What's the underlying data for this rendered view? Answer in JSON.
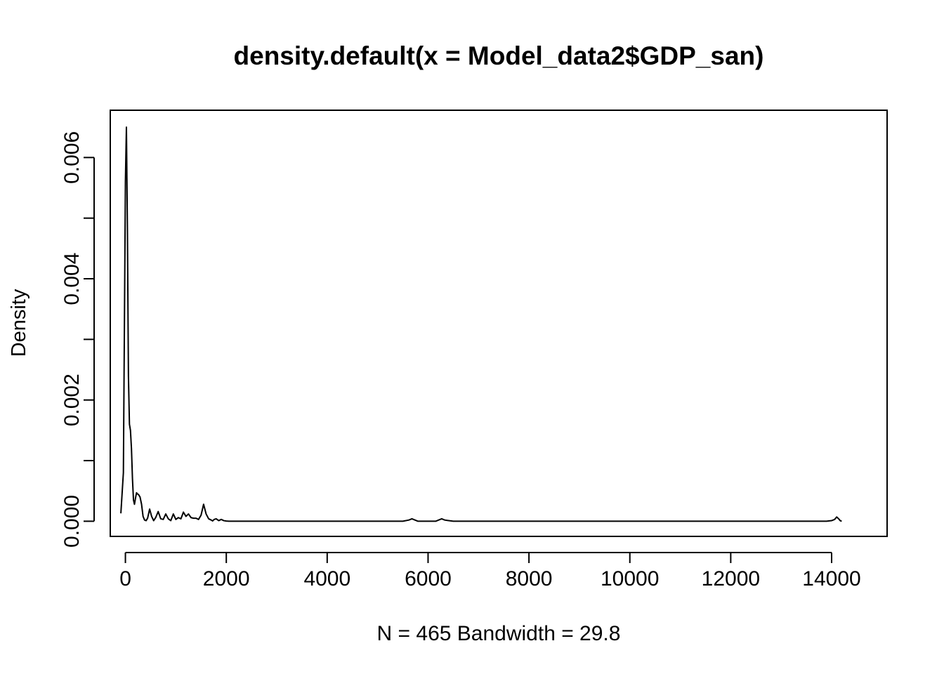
{
  "chart_data": {
    "type": "line",
    "title": "density.default(x = Model_data2$GDP_san)",
    "xlabel": "N = 465   Bandwidth = 29.8",
    "ylabel": "Density",
    "xlim": [
      -300,
      15100
    ],
    "ylim": [
      -0.00025,
      0.00678
    ],
    "x_ticks": [
      0,
      2000,
      4000,
      6000,
      8000,
      10000,
      12000,
      14000
    ],
    "x_tick_labels": [
      "0",
      "2000",
      "4000",
      "6000",
      "8000",
      "10000",
      "12000",
      "14000"
    ],
    "y_ticks": [
      0,
      0.001,
      0.002,
      0.003,
      0.004,
      0.005,
      0.006
    ],
    "y_tick_labels": [
      "0.000",
      "",
      "0.002",
      "",
      "0.004",
      "",
      "0.006"
    ],
    "grid": false,
    "series": [
      {
        "color": "#000000",
        "x": [
          -90,
          -40,
          0,
          20,
          40,
          60,
          80,
          100,
          120,
          140,
          160,
          180,
          200,
          220,
          240,
          260,
          290,
          320,
          350,
          380,
          410,
          440,
          480,
          520,
          560,
          600,
          650,
          700,
          750,
          800,
          850,
          900,
          950,
          1000,
          1050,
          1100,
          1150,
          1200,
          1250,
          1300,
          1350,
          1400,
          1450,
          1500,
          1550,
          1600,
          1650,
          1700,
          1730,
          1760,
          1800,
          1850,
          1900,
          1950,
          2000,
          2050,
          2100,
          2150,
          2200,
          2400,
          2700,
          3000,
          4000,
          5000,
          5500,
          5620,
          5680,
          5740,
          5800,
          6150,
          6210,
          6270,
          6330,
          6500,
          8000,
          10000,
          12000,
          13900,
          14000,
          14060,
          14100,
          14140,
          14170,
          14200
        ],
        "y": [
          0.00013,
          0.0008,
          0.0056,
          0.0065,
          0.0048,
          0.0024,
          0.0016,
          0.0015,
          0.0012,
          0.0007,
          0.00035,
          0.00028,
          0.00038,
          0.00047,
          0.00045,
          0.00044,
          0.0004,
          0.00028,
          8e-05,
          2e-05,
          1e-05,
          5e-05,
          0.0002,
          8e-05,
          1e-05,
          6e-05,
          0.00016,
          4e-05,
          3e-05,
          0.00012,
          4e-05,
          1e-05,
          0.00012,
          3e-05,
          6e-05,
          4e-05,
          0.00015,
          8e-05,
          0.00012,
          6e-05,
          5e-05,
          5e-05,
          3e-05,
          0.0001,
          0.00028,
          0.00012,
          4e-05,
          2e-05,
          5e-06,
          3e-05,
          4e-05,
          1e-05,
          3e-05,
          1e-05,
          3e-06,
          0,
          0,
          0,
          0,
          0,
          0,
          0,
          0,
          0,
          0,
          2e-05,
          4e-05,
          2e-05,
          0,
          0,
          2e-05,
          4e-05,
          2e-05,
          0,
          0,
          0,
          0,
          0,
          1e-05,
          3e-05,
          7e-05,
          4e-05,
          1e-05,
          0
        ]
      }
    ]
  }
}
